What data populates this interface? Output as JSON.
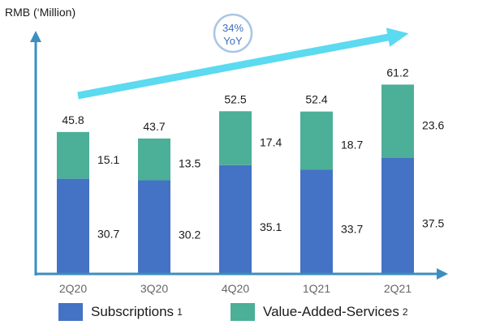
{
  "chart_data": {
    "type": "bar",
    "stacked": true,
    "ylabel": "RMB (‘Million)",
    "categories": [
      "2Q20",
      "3Q20",
      "4Q20",
      "1Q21",
      "2Q21"
    ],
    "series": [
      {
        "name": "Subscriptions",
        "values": [
          30.7,
          30.2,
          35.1,
          33.7,
          37.5
        ],
        "color": "#4472c4"
      },
      {
        "name": "Value-Added-Services",
        "values": [
          15.1,
          13.5,
          17.4,
          18.7,
          23.6
        ],
        "color": "#4caf97"
      }
    ],
    "totals": [
      45.8,
      43.7,
      52.5,
      52.4,
      61.2
    ],
    "ylim": [
      0,
      70
    ],
    "annotation": {
      "line1": "34%",
      "line2": "YoY"
    },
    "colors": {
      "axis": "#3c8ec0",
      "arrow": "#5bdaf0",
      "badge_text": "#3f6fbf",
      "badge_border": "#a9c6e4"
    }
  },
  "legend": [
    {
      "label": "Subscriptions",
      "note": "1",
      "color": "#4472c4"
    },
    {
      "label": "Value-Added-Services",
      "note": "2",
      "color": "#4caf97"
    }
  ]
}
